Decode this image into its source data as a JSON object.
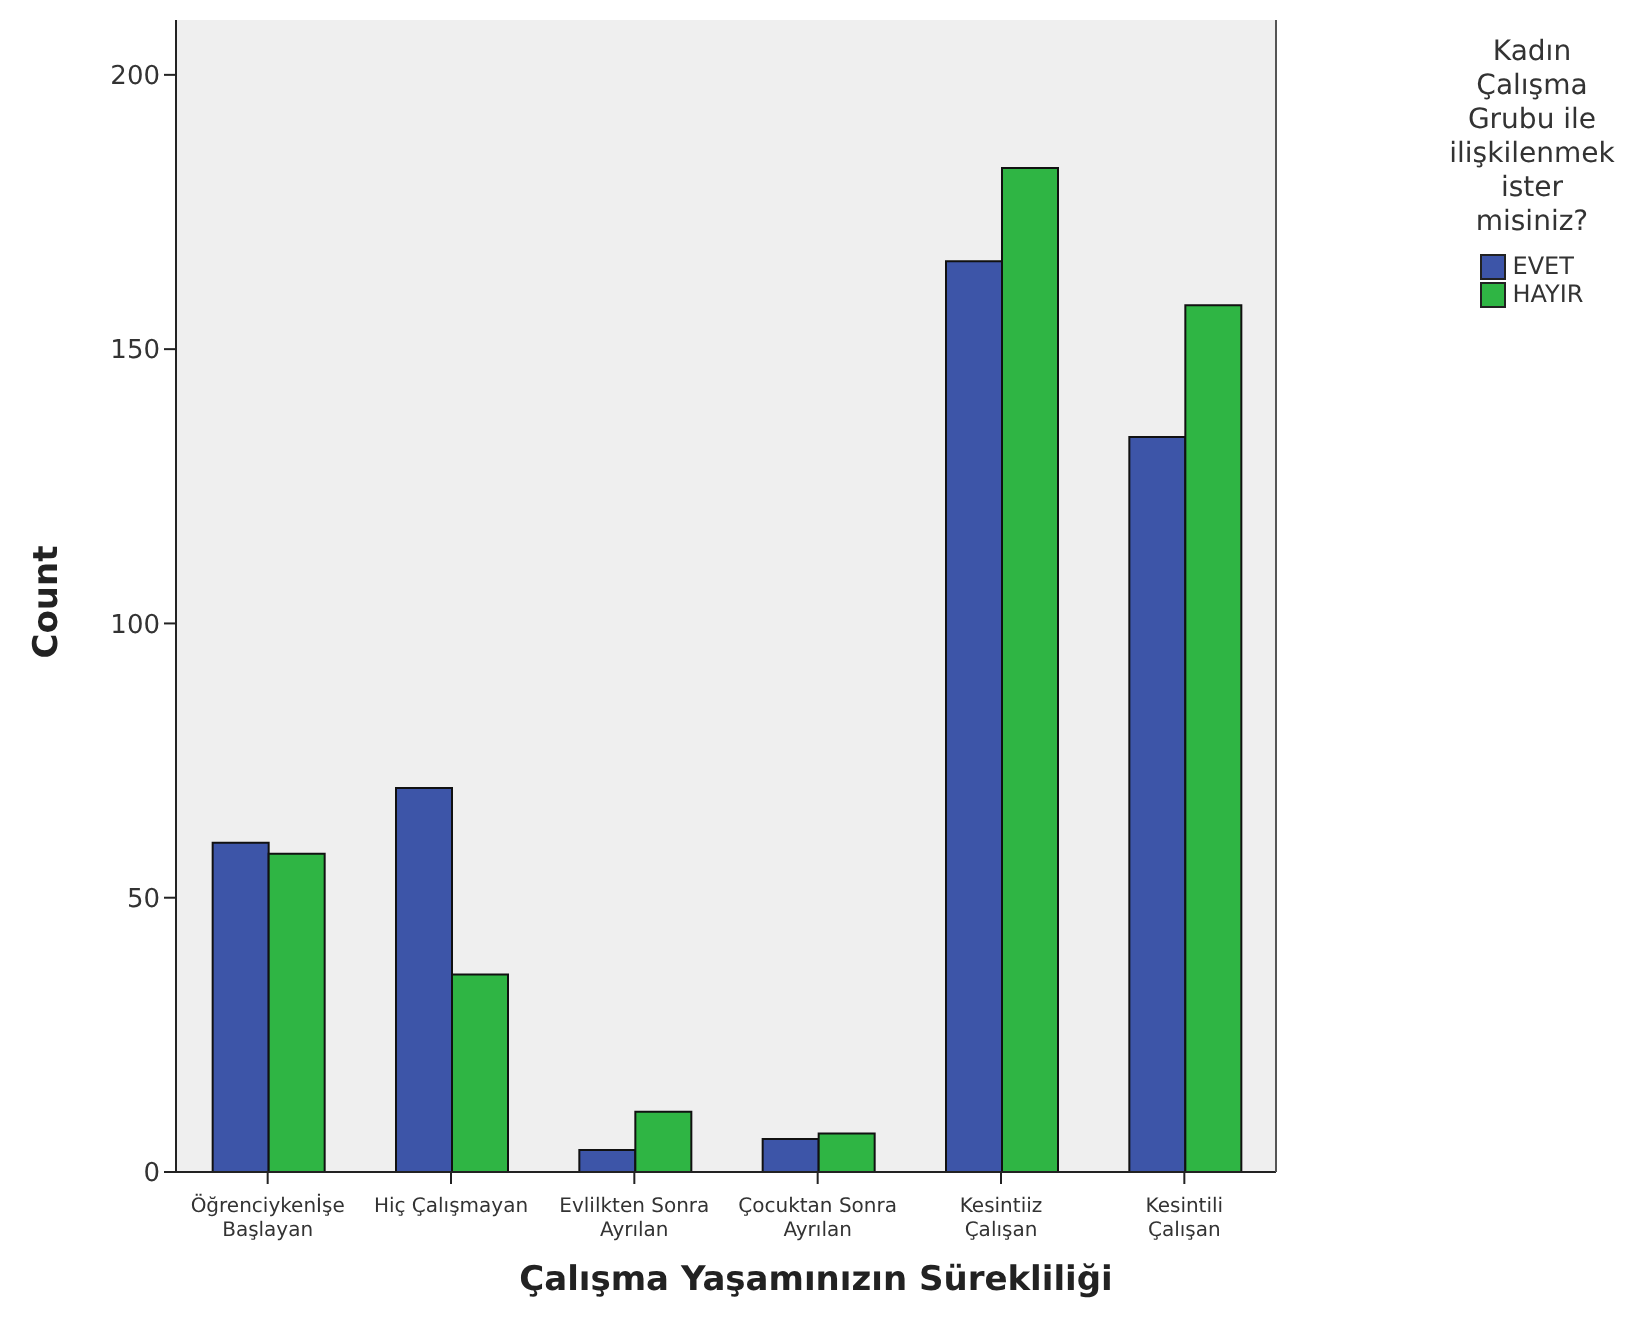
{
  "chart_data": {
    "type": "bar",
    "xlabel": "Çalışma Yaşamınızın Sürekliliği",
    "ylabel": "Count",
    "legend_title": "Kadın\nÇalışma\nGrubu ile\nilişkilenmek\nister\nmisiniz?",
    "categories": [
      "Öğrenciykenİşe\nBaşlayan",
      "Hiç Çalışmayan",
      "Evlilkten Sonra\nAyrılan",
      "Çocuktan Sonra\nAyrılan",
      "Kesintiiz\nÇalışan",
      "Kesintili\nÇalışan"
    ],
    "series": [
      {
        "name": "EVET",
        "color": "#3d55a8",
        "values": [
          60,
          70,
          4,
          6,
          166,
          134
        ]
      },
      {
        "name": "HAYIR",
        "color": "#2fb544",
        "values": [
          58,
          36,
          11,
          7,
          183,
          158
        ]
      }
    ],
    "ylim": [
      0,
      210
    ],
    "yticks": [
      0,
      50,
      100,
      150,
      200
    ],
    "legend": "right"
  }
}
